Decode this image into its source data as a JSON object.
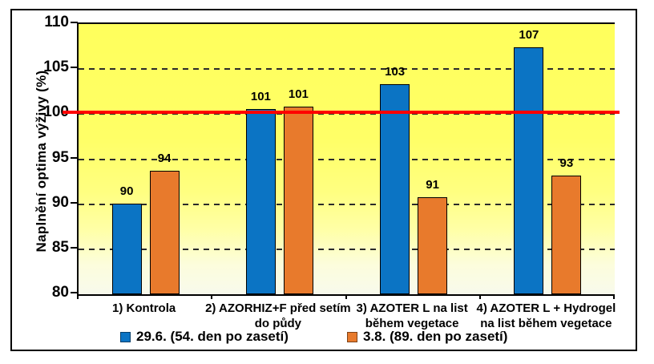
{
  "chart_data": {
    "type": "bar",
    "title": "",
    "ylabel": "Naplnění optima výživy (%)",
    "xlabel": "",
    "ylim": [
      80,
      110
    ],
    "yticks": [
      80,
      85,
      90,
      95,
      100,
      105,
      110
    ],
    "grid": "horizontal-dashed",
    "legend_position": "bottom",
    "plot_background": {
      "type": "gradient",
      "top_color": "#FFFF5C",
      "bottom_color": "#F8FAEC"
    },
    "categories": [
      "1) Kontrola",
      "2) AZORHIZ+F před setím\ndo půdy",
      "3) AZOTER L na list\nběhem vegetace",
      "4) AZOTER L + Hydrogel\nna list během vegetace"
    ],
    "series": [
      {
        "name": "29.6. (54. den po zasetí)",
        "color": "#0B74C4",
        "values": [
          90.1,
          100.6,
          103.3,
          107.4
        ],
        "value_labels": [
          "90",
          "101",
          "103",
          "107"
        ]
      },
      {
        "name": "3.8. (89. den po zasetí)",
        "color": "#E87A2C",
        "values": [
          93.7,
          100.8,
          90.8,
          93.2
        ],
        "value_labels": [
          "94",
          "101",
          "91",
          "93"
        ]
      }
    ],
    "reference_line": {
      "value": 100,
      "color": "#FF0000"
    }
  }
}
